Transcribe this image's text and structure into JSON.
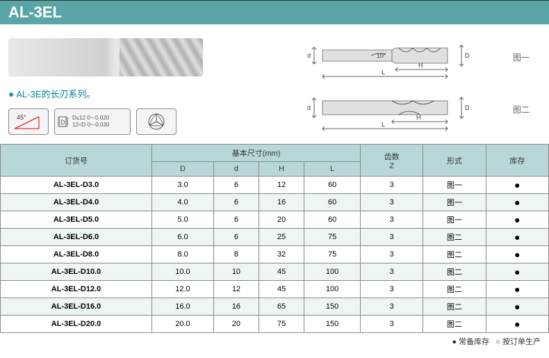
{
  "header": {
    "title": "AL-3EL"
  },
  "description": {
    "bullet": "●",
    "text": "AL-3E的长刃系列。"
  },
  "icons": {
    "angle": "45°",
    "tolerance_1": "D≤12 0~-0.020",
    "tolerance_2": "12<D 0~-0.030",
    "tolerance_prefix": "D"
  },
  "diagram_labels": {
    "fig1": "图一",
    "fig2": "图二",
    "d": "d",
    "D": "D",
    "H": "H",
    "L": "L",
    "angle": "10°"
  },
  "table": {
    "headers": {
      "order": "订货号",
      "dims": "基本尺寸(mm)",
      "D": "D",
      "d": "d",
      "H": "H",
      "L": "L",
      "teeth": "齿数\nZ",
      "form": "形式",
      "stock": "库存"
    },
    "rows": [
      {
        "order": "AL-3EL-D3.0",
        "D": "3.0",
        "d": "6",
        "H": "12",
        "L": "60",
        "Z": "3",
        "form": "图一",
        "stock": "●"
      },
      {
        "order": "AL-3EL-D4.0",
        "D": "4.0",
        "d": "6",
        "H": "16",
        "L": "60",
        "Z": "3",
        "form": "图一",
        "stock": "●"
      },
      {
        "order": "AL-3EL-D5.0",
        "D": "5.0",
        "d": "6",
        "H": "20",
        "L": "60",
        "Z": "3",
        "form": "图一",
        "stock": "●"
      },
      {
        "order": "AL-3EL-D6.0",
        "D": "6.0",
        "d": "6",
        "H": "25",
        "L": "75",
        "Z": "3",
        "form": "图二",
        "stock": "●"
      },
      {
        "order": "AL-3EL-D8.0",
        "D": "8.0",
        "d": "8",
        "H": "32",
        "L": "75",
        "Z": "3",
        "form": "图二",
        "stock": "●"
      },
      {
        "order": "AL-3EL-D10.0",
        "D": "10.0",
        "d": "10",
        "H": "45",
        "L": "100",
        "Z": "3",
        "form": "图二",
        "stock": "●"
      },
      {
        "order": "AL-3EL-D12.0",
        "D": "12.0",
        "d": "12",
        "H": "45",
        "L": "100",
        "Z": "3",
        "form": "图二",
        "stock": "●"
      },
      {
        "order": "AL-3EL-D16.0",
        "D": "16.0",
        "d": "16",
        "H": "65",
        "L": "150",
        "Z": "3",
        "form": "图二",
        "stock": "●"
      },
      {
        "order": "AL-3EL-D20.0",
        "D": "20.0",
        "d": "20",
        "H": "75",
        "L": "150",
        "Z": "3",
        "form": "图二",
        "stock": "●"
      }
    ]
  },
  "footer": {
    "stock_in": "● 常备库存",
    "stock_order": "○ 按订单生产"
  },
  "colors": {
    "header_bg": "#5aa5a5",
    "th_bg": "#b8d8d8",
    "row_alt": "#eef5f5",
    "desc_color": "#0080a0",
    "border": "#888888"
  }
}
